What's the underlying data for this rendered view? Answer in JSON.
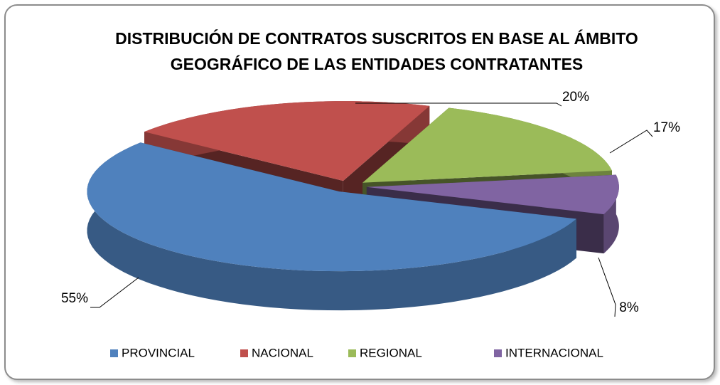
{
  "chart_data": {
    "type": "pie3d",
    "title": "DISTRIBUCIÓN DE CONTRATOS SUSCRITOS EN BASE AL ÁMBITO GEOGRÁFICO DE LAS ENTIDADES CONTRATANTES",
    "categories": [
      "PROVINCIAL",
      "NACIONAL",
      "REGIONAL",
      "INTERNACIONAL"
    ],
    "values": [
      55,
      20,
      17,
      8
    ],
    "value_labels": [
      "55%",
      "20%",
      "17%",
      "8%"
    ],
    "colors": [
      "#4f81bd",
      "#c0504d",
      "#9bbb59",
      "#8064a2"
    ],
    "legend": "bottom"
  }
}
